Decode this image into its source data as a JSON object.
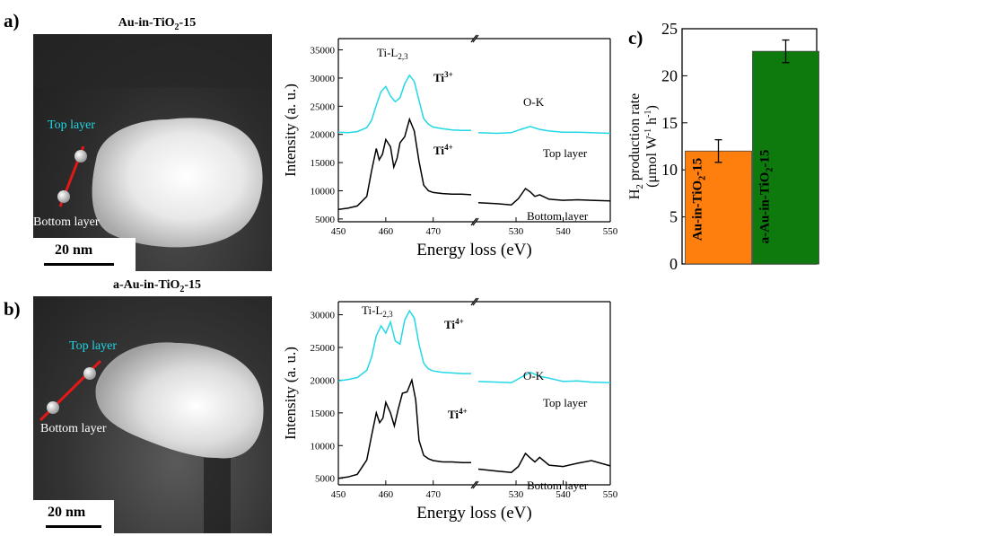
{
  "panel_a": {
    "label": "a)",
    "title_main": "Au-in-TiO",
    "title_sub": "2",
    "title_tail": "-15",
    "tem": {
      "top_layer": "Top layer",
      "bottom_layer": "Bottom layer",
      "scale_bar": "20 nm"
    }
  },
  "panel_b": {
    "label": "b)",
    "title_main": "a-Au-in-TiO",
    "title_sub": "2",
    "title_tail": "-15",
    "tem": {
      "top_layer": "Top layer",
      "bottom_layer": "Bottom layer",
      "scale_bar": "20 nm"
    }
  },
  "panel_c": {
    "label": "c)"
  },
  "chart_data": [
    {
      "type": "line",
      "panel": "a",
      "xlabel": "Energy loss (eV)",
      "ylabel": "Intensity  (a. u.)",
      "xticks_left": [
        450,
        460,
        470
      ],
      "xticks_right": [
        530,
        540,
        550
      ],
      "xlim_left": [
        450,
        478
      ],
      "xlim_right": [
        522,
        550
      ],
      "ylim": [
        4500,
        37000
      ],
      "yticks": [
        5000,
        10000,
        15000,
        20000,
        25000,
        30000,
        35000
      ],
      "annotations": {
        "edge_ti": "Ti-L",
        "edge_ti_sub": "2,3",
        "edge_o": "O-K",
        "top_state": "Ti",
        "top_state_sup": "3+",
        "bottom_state": "Ti",
        "bottom_state_sup": "4+"
      },
      "series": [
        {
          "name": "Top layer",
          "color": "#22d8e6",
          "left": [
            [
              450,
              20400
            ],
            [
              452,
              20300
            ],
            [
              454,
              20500
            ],
            [
              456,
              21200
            ],
            [
              457,
              22500
            ],
            [
              458,
              25200
            ],
            [
              459,
              27600
            ],
            [
              460,
              28500
            ],
            [
              461,
              26800
            ],
            [
              462,
              25800
            ],
            [
              463,
              26500
            ],
            [
              464,
              29000
            ],
            [
              465,
              30500
            ],
            [
              466,
              29400
            ],
            [
              467,
              26000
            ],
            [
              468,
              22800
            ],
            [
              469,
              21800
            ],
            [
              470,
              21300
            ],
            [
              472,
              21000
            ],
            [
              474,
              20800
            ],
            [
              476,
              20700
            ],
            [
              478,
              20700
            ]
          ],
          "right": [
            [
              522,
              20300
            ],
            [
              526,
              20200
            ],
            [
              529,
              20300
            ],
            [
              531,
              20900
            ],
            [
              533,
              21400
            ],
            [
              535,
              20900
            ],
            [
              537,
              20600
            ],
            [
              540,
              20400
            ],
            [
              543,
              20400
            ],
            [
              546,
              20300
            ],
            [
              550,
              20200
            ]
          ]
        },
        {
          "name": "Bottom layer",
          "color": "#000000",
          "left": [
            [
              450,
              6700
            ],
            [
              452,
              6900
            ],
            [
              454,
              7300
            ],
            [
              456,
              9000
            ],
            [
              457,
              13500
            ],
            [
              458,
              17500
            ],
            [
              458.6,
              15500
            ],
            [
              459.3,
              16500
            ],
            [
              460,
              19100
            ],
            [
              461,
              17800
            ],
            [
              461.7,
              14200
            ],
            [
              462.4,
              15800
            ],
            [
              463,
              18500
            ],
            [
              464,
              19600
            ],
            [
              465,
              22700
            ],
            [
              466,
              20600
            ],
            [
              467,
              15200
            ],
            [
              468,
              11000
            ],
            [
              469,
              10000
            ],
            [
              470,
              9700
            ],
            [
              472,
              9500
            ],
            [
              474,
              9400
            ],
            [
              476,
              9400
            ],
            [
              478,
              9300
            ]
          ],
          "right": [
            [
              522,
              7900
            ],
            [
              526,
              7700
            ],
            [
              529,
              7500
            ],
            [
              530.5,
              8600
            ],
            [
              532,
              10400
            ],
            [
              533,
              9800
            ],
            [
              534,
              9000
            ],
            [
              535,
              9300
            ],
            [
              537,
              8500
            ],
            [
              540,
              8300
            ],
            [
              543,
              8400
            ],
            [
              546,
              8300
            ],
            [
              550,
              8200
            ]
          ]
        }
      ],
      "curve_labels": {
        "top": "Top layer",
        "bottom": "Bottom layer"
      }
    },
    {
      "type": "line",
      "panel": "b",
      "xlabel": "Energy loss (eV)",
      "ylabel": "Intensity  (a. u.)",
      "xticks_left": [
        450,
        460,
        470
      ],
      "xticks_right": [
        530,
        540,
        550
      ],
      "xlim_left": [
        450,
        478
      ],
      "xlim_right": [
        522,
        550
      ],
      "ylim": [
        4000,
        32000
      ],
      "yticks": [
        5000,
        10000,
        15000,
        20000,
        25000,
        30000
      ],
      "annotations": {
        "edge_ti": "Ti-L",
        "edge_ti_sub": "2,3",
        "edge_o": "O-K",
        "top_state": "Ti",
        "top_state_sup": "4+",
        "bottom_state": "Ti",
        "bottom_state_sup": "4+"
      },
      "series": [
        {
          "name": "Top layer",
          "color": "#22d8e6",
          "left": [
            [
              450,
              19900
            ],
            [
              452,
              20100
            ],
            [
              454,
              20400
            ],
            [
              456,
              21500
            ],
            [
              457,
              23500
            ],
            [
              458,
              26800
            ],
            [
              459,
              28300
            ],
            [
              460,
              27200
            ],
            [
              461,
              28900
            ],
            [
              462,
              26000
            ],
            [
              463,
              25500
            ],
            [
              464,
              29200
            ],
            [
              465,
              30600
            ],
            [
              466,
              29500
            ],
            [
              467,
              25500
            ],
            [
              468,
              22600
            ],
            [
              469,
              21700
            ],
            [
              470,
              21400
            ],
            [
              472,
              21200
            ],
            [
              474,
              21100
            ],
            [
              476,
              21000
            ],
            [
              478,
              21000
            ]
          ],
          "right": [
            [
              522,
              19800
            ],
            [
              526,
              19700
            ],
            [
              529,
              19600
            ],
            [
              531,
              20400
            ],
            [
              533,
              21200
            ],
            [
              535,
              20600
            ],
            [
              537,
              20300
            ],
            [
              540,
              19800
            ],
            [
              543,
              19900
            ],
            [
              546,
              19700
            ],
            [
              550,
              19600
            ]
          ]
        },
        {
          "name": "Bottom layer",
          "color": "#000000",
          "left": [
            [
              450,
              5000
            ],
            [
              452,
              5200
            ],
            [
              454,
              5600
            ],
            [
              456,
              7800
            ],
            [
              457,
              11500
            ],
            [
              458,
              15000
            ],
            [
              458.7,
              13500
            ],
            [
              459.4,
              14200
            ],
            [
              460,
              16600
            ],
            [
              461,
              15000
            ],
            [
              461.8,
              13000
            ],
            [
              462.6,
              15500
            ],
            [
              463.5,
              18000
            ],
            [
              464.5,
              18200
            ],
            [
              465.5,
              20000
            ],
            [
              466.3,
              17000
            ],
            [
              467,
              10800
            ],
            [
              468,
              8500
            ],
            [
              469,
              8000
            ],
            [
              470,
              7700
            ],
            [
              472,
              7500
            ],
            [
              474,
              7500
            ],
            [
              476,
              7400
            ],
            [
              478,
              7400
            ]
          ],
          "right": [
            [
              522,
              6400
            ],
            [
              526,
              6100
            ],
            [
              529,
              5900
            ],
            [
              530.5,
              6800
            ],
            [
              532,
              8800
            ],
            [
              533,
              8100
            ],
            [
              534,
              7500
            ],
            [
              535,
              8200
            ],
            [
              537,
              7000
            ],
            [
              540,
              6800
            ],
            [
              543,
              7300
            ],
            [
              546,
              7700
            ],
            [
              550,
              6900
            ]
          ]
        }
      ],
      "curve_labels": {
        "top": "Top layer",
        "bottom": "Bottom layer"
      }
    },
    {
      "type": "bar",
      "panel": "c",
      "ylabel_line1": "H",
      "ylabel_line1_sub": "2",
      "ylabel_line1_tail": " production rate",
      "ylabel_line2": "(μmol W",
      "ylabel_line2_sup1": "-1",
      "ylabel_line2_mid": " h",
      "ylabel_line2_sup2": "-1",
      "ylabel_line2_tail": ")",
      "ylim": [
        0,
        25
      ],
      "yticks": [
        0,
        5,
        10,
        15,
        20,
        25
      ],
      "categories": [
        {
          "main": "Au-in-TiO",
          "sub": "2",
          "tail": "-15"
        },
        {
          "main": "a-Au-in-TiO",
          "sub": "2",
          "tail": "-15"
        }
      ],
      "values": [
        12.0,
        22.6
      ],
      "errors": [
        1.2,
        1.2
      ],
      "colors": [
        "#ff7f0e",
        "#0e7a0e"
      ]
    }
  ]
}
